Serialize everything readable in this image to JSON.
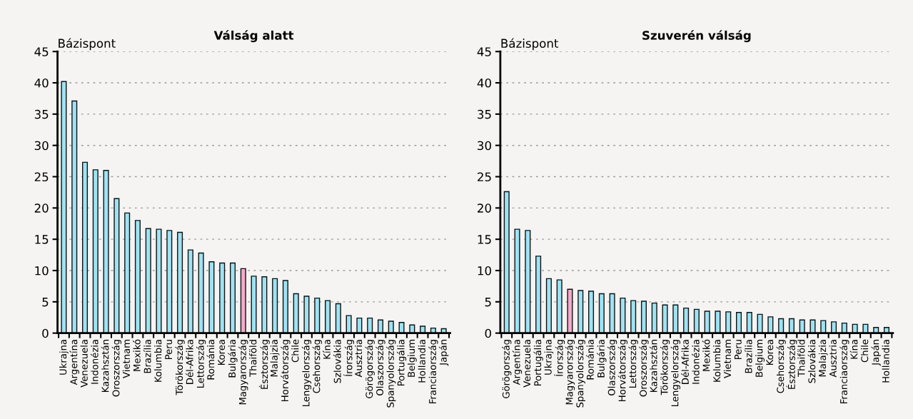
{
  "chart_data": [
    {
      "type": "bar",
      "title": "Válság alatt",
      "ylabel": "Bázispont",
      "categories": [
        "Ukrajna",
        "Argentína",
        "Venezuela",
        "Indonézia",
        "Kazahsztán",
        "Oroszország",
        "Vietnam",
        "Mexikó",
        "Brazília",
        "Kolumbia",
        "Peru",
        "Törökország",
        "Dél-Afrika",
        "Lettország",
        "Románia",
        "Korea",
        "Bulgária",
        "Magyarország",
        "Thaiföld",
        "Észtország",
        "Malajzia",
        "Horvátország",
        "Chile",
        "Lengyelország",
        "Csehország",
        "Kína",
        "Szlovákia",
        "Írország",
        "Ausztria",
        "Görögország",
        "Olaszország",
        "Spanyolország",
        "Portugália",
        "Belgium",
        "Hollandia",
        "Franciaország",
        "Japán"
      ],
      "values": [
        40.2,
        37.1,
        27.3,
        26.1,
        26.0,
        21.5,
        19.2,
        18.0,
        16.7,
        16.6,
        16.4,
        16.1,
        13.3,
        12.8,
        11.4,
        11.2,
        11.2,
        10.3,
        9.1,
        9.0,
        8.7,
        8.4,
        6.3,
        5.9,
        5.6,
        5.2,
        4.7,
        2.8,
        2.4,
        2.4,
        2.1,
        1.9,
        1.7,
        1.3,
        1.1,
        0.8,
        0.7
      ],
      "colors": [
        "#9ee3f3",
        "#9ee3f3",
        "#9ee3f3",
        "#9ee3f3",
        "#9ee3f3",
        "#9ee3f3",
        "#9ee3f3",
        "#9ee3f3",
        "#9ee3f3",
        "#9ee3f3",
        "#9ee3f3",
        "#9ee3f3",
        "#9ee3f3",
        "#9ee3f3",
        "#9ee3f3",
        "#9ee3f3",
        "#9ee3f3",
        "#f4aacb",
        "#9ee3f3",
        "#9ee3f3",
        "#9ee3f3",
        "#9ee3f3",
        "#9ee3f3",
        "#9ee3f3",
        "#9ee3f3",
        "#9ee3f3",
        "#9ee3f3",
        "#9ee3f3",
        "#9ee3f3",
        "#9ee3f3",
        "#9ee3f3",
        "#9ee3f3",
        "#9ee3f3",
        "#9ee3f3",
        "#9ee3f3",
        "#9ee3f3",
        "#9ee3f3"
      ],
      "ylim": [
        0,
        45
      ],
      "yticks": [
        0,
        5,
        10,
        15,
        20,
        25,
        30,
        35,
        40,
        45
      ],
      "grid": "y"
    },
    {
      "type": "bar",
      "title": "Szuverén válság",
      "ylabel": "Bázispont",
      "categories": [
        "Görögország",
        "Argentína",
        "Venezuela",
        "Portugália",
        "Ukrajna",
        "Írország",
        "Magyarország",
        "Spanyolország",
        "Románia",
        "Bulgária",
        "Olaszország",
        "Horvátország",
        "Lettország",
        "Oroszország",
        "Kazahsztán",
        "Törökország",
        "Lengyelország",
        "Dél-Afrika",
        "Indonézia",
        "Mexikó",
        "Kolumbia",
        "Vietnam",
        "Peru",
        "Brazília",
        "Belgium",
        "Korea",
        "Csehország",
        "Észtország",
        "Thaiföld",
        "Szlovákia",
        "Malajzia",
        "Ausztria",
        "Franciaország",
        "Kína",
        "Chile",
        "Japán",
        "Hollandia"
      ],
      "values": [
        22.6,
        16.6,
        16.4,
        12.3,
        8.7,
        8.5,
        7.0,
        6.8,
        6.7,
        6.3,
        6.3,
        5.6,
        5.2,
        5.1,
        4.8,
        4.5,
        4.5,
        4.0,
        3.8,
        3.5,
        3.5,
        3.4,
        3.3,
        3.3,
        3.0,
        2.6,
        2.3,
        2.3,
        2.1,
        2.1,
        2.0,
        1.8,
        1.6,
        1.4,
        1.4,
        0.9,
        0.9
      ],
      "colors": [
        "#9ee3f3",
        "#9ee3f3",
        "#9ee3f3",
        "#9ee3f3",
        "#9ee3f3",
        "#9ee3f3",
        "#f4aacb",
        "#9ee3f3",
        "#9ee3f3",
        "#9ee3f3",
        "#9ee3f3",
        "#9ee3f3",
        "#9ee3f3",
        "#9ee3f3",
        "#9ee3f3",
        "#9ee3f3",
        "#9ee3f3",
        "#9ee3f3",
        "#9ee3f3",
        "#9ee3f3",
        "#9ee3f3",
        "#9ee3f3",
        "#9ee3f3",
        "#9ee3f3",
        "#9ee3f3",
        "#9ee3f3",
        "#9ee3f3",
        "#9ee3f3",
        "#9ee3f3",
        "#9ee3f3",
        "#9ee3f3",
        "#9ee3f3",
        "#9ee3f3",
        "#9ee3f3",
        "#9ee3f3",
        "#9ee3f3",
        "#9ee3f3"
      ],
      "ylim": [
        0,
        45
      ],
      "yticks": [
        0,
        5,
        10,
        15,
        20,
        25,
        30,
        35,
        40,
        45
      ],
      "grid": "y"
    }
  ]
}
